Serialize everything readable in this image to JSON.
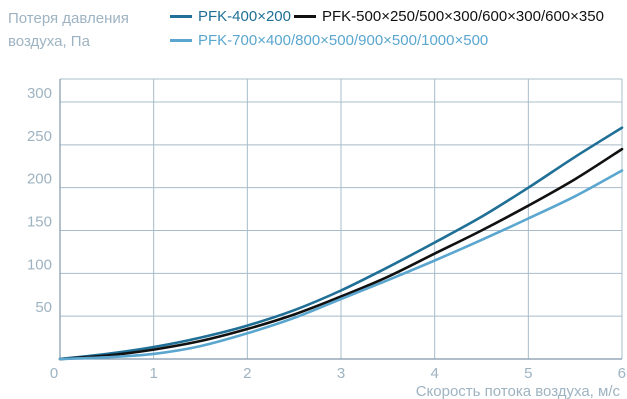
{
  "chart_data": {
    "type": "line",
    "title": "",
    "ylabel_lines": [
      "Потеря давления",
      "воздуха, Па"
    ],
    "xlabel": "Скорость потока воздуха, м/с",
    "xlim": [
      0,
      6
    ],
    "ylim": [
      0,
      300
    ],
    "x_ticks": [
      "0",
      "1",
      "2",
      "3",
      "4",
      "5",
      "6"
    ],
    "y_ticks": [
      "50",
      "100",
      "150",
      "200",
      "250",
      "300"
    ],
    "grid": "horizontal",
    "series": [
      {
        "name": "PFK-400×200",
        "color": "#1f6f96",
        "x": [
          0,
          0.5,
          1,
          1.5,
          2,
          2.5,
          3,
          3.5,
          4,
          4.5,
          5,
          5.5,
          6
        ],
        "y": [
          0,
          6,
          14,
          25,
          39,
          57,
          80,
          107,
          136,
          166,
          200,
          236,
          270
        ]
      },
      {
        "name": "PFK-500×250/500×300/600×300/600×350",
        "color": "#111111",
        "x": [
          0,
          0.5,
          1,
          1.5,
          2,
          2.5,
          3,
          3.5,
          4,
          4.5,
          5,
          5.5,
          6
        ],
        "y": [
          0,
          4,
          11,
          21,
          35,
          52,
          73,
          96,
          123,
          150,
          179,
          210,
          245
        ]
      },
      {
        "name": "PFK-700×400/800×500/900×500/1000×500",
        "color": "#5aa6cf",
        "x": [
          0,
          0.5,
          1,
          1.5,
          2,
          2.5,
          3,
          3.5,
          4,
          4.5,
          5,
          5.5,
          6
        ],
        "y": [
          0,
          2,
          6,
          15,
          30,
          48,
          70,
          92,
          115,
          139,
          164,
          190,
          220
        ]
      }
    ]
  }
}
